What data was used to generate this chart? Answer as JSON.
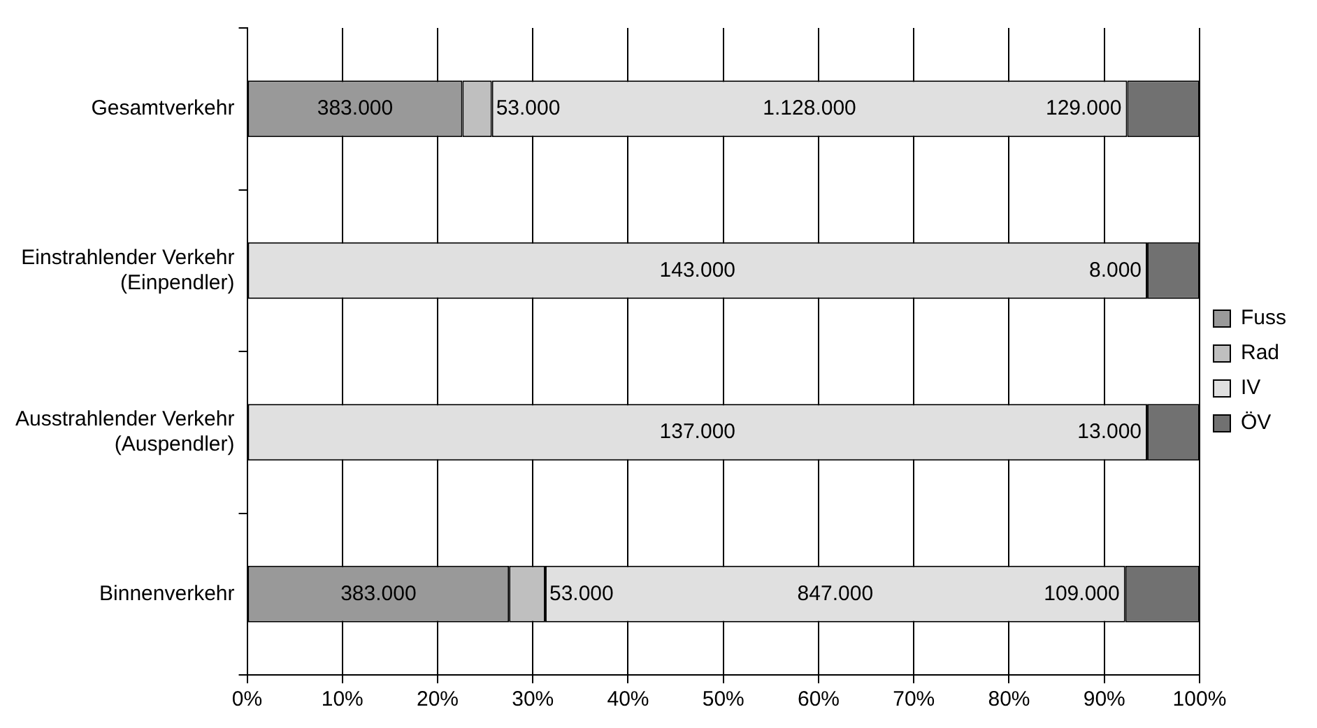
{
  "chart_data": {
    "type": "bar",
    "orientation": "horizontal",
    "stacked": true,
    "categories": [
      "Gesamtverkehr",
      "Einstrahlender Verkehr\n(Einpendler)",
      "Ausstrahlender Verkehr\n(Auspendler)",
      "Binnenverkehr"
    ],
    "series": [
      {
        "name": "Fuss",
        "color": "#999999",
        "values": [
          22.6,
          null,
          null,
          27.5
        ]
      },
      {
        "name": "Rad",
        "color": "#bfbfbf",
        "values": [
          3.1,
          null,
          null,
          3.8
        ]
      },
      {
        "name": "IV",
        "color": "#e0e0e0",
        "values": [
          66.7,
          94.5,
          94.5,
          60.9
        ]
      },
      {
        "name": "ÖV",
        "color": "#717171",
        "values": [
          7.6,
          5.5,
          5.5,
          7.8
        ]
      }
    ],
    "annotations": [
      "383.000",
      "53.000",
      "1.128.000",
      "129.000",
      "143.000",
      "8.000",
      "137.000",
      "13.000",
      "383.000",
      "53.000",
      "847.000",
      "109.000"
    ],
    "xlim": [
      0,
      100
    ],
    "xticks": [
      {
        "value": 0,
        "label": "0%"
      },
      {
        "value": 10,
        "label": "10%"
      },
      {
        "value": 20,
        "label": "20%"
      },
      {
        "value": 30,
        "label": "30%"
      },
      {
        "value": 40,
        "label": "40%"
      },
      {
        "value": 50,
        "label": "50%"
      },
      {
        "value": 60,
        "label": "60%"
      },
      {
        "value": 70,
        "label": "70%"
      },
      {
        "value": 80,
        "label": "80%"
      },
      {
        "value": 90,
        "label": "90%"
      },
      {
        "value": 100,
        "label": "100%"
      }
    ],
    "grid": "x",
    "legend": "right"
  }
}
